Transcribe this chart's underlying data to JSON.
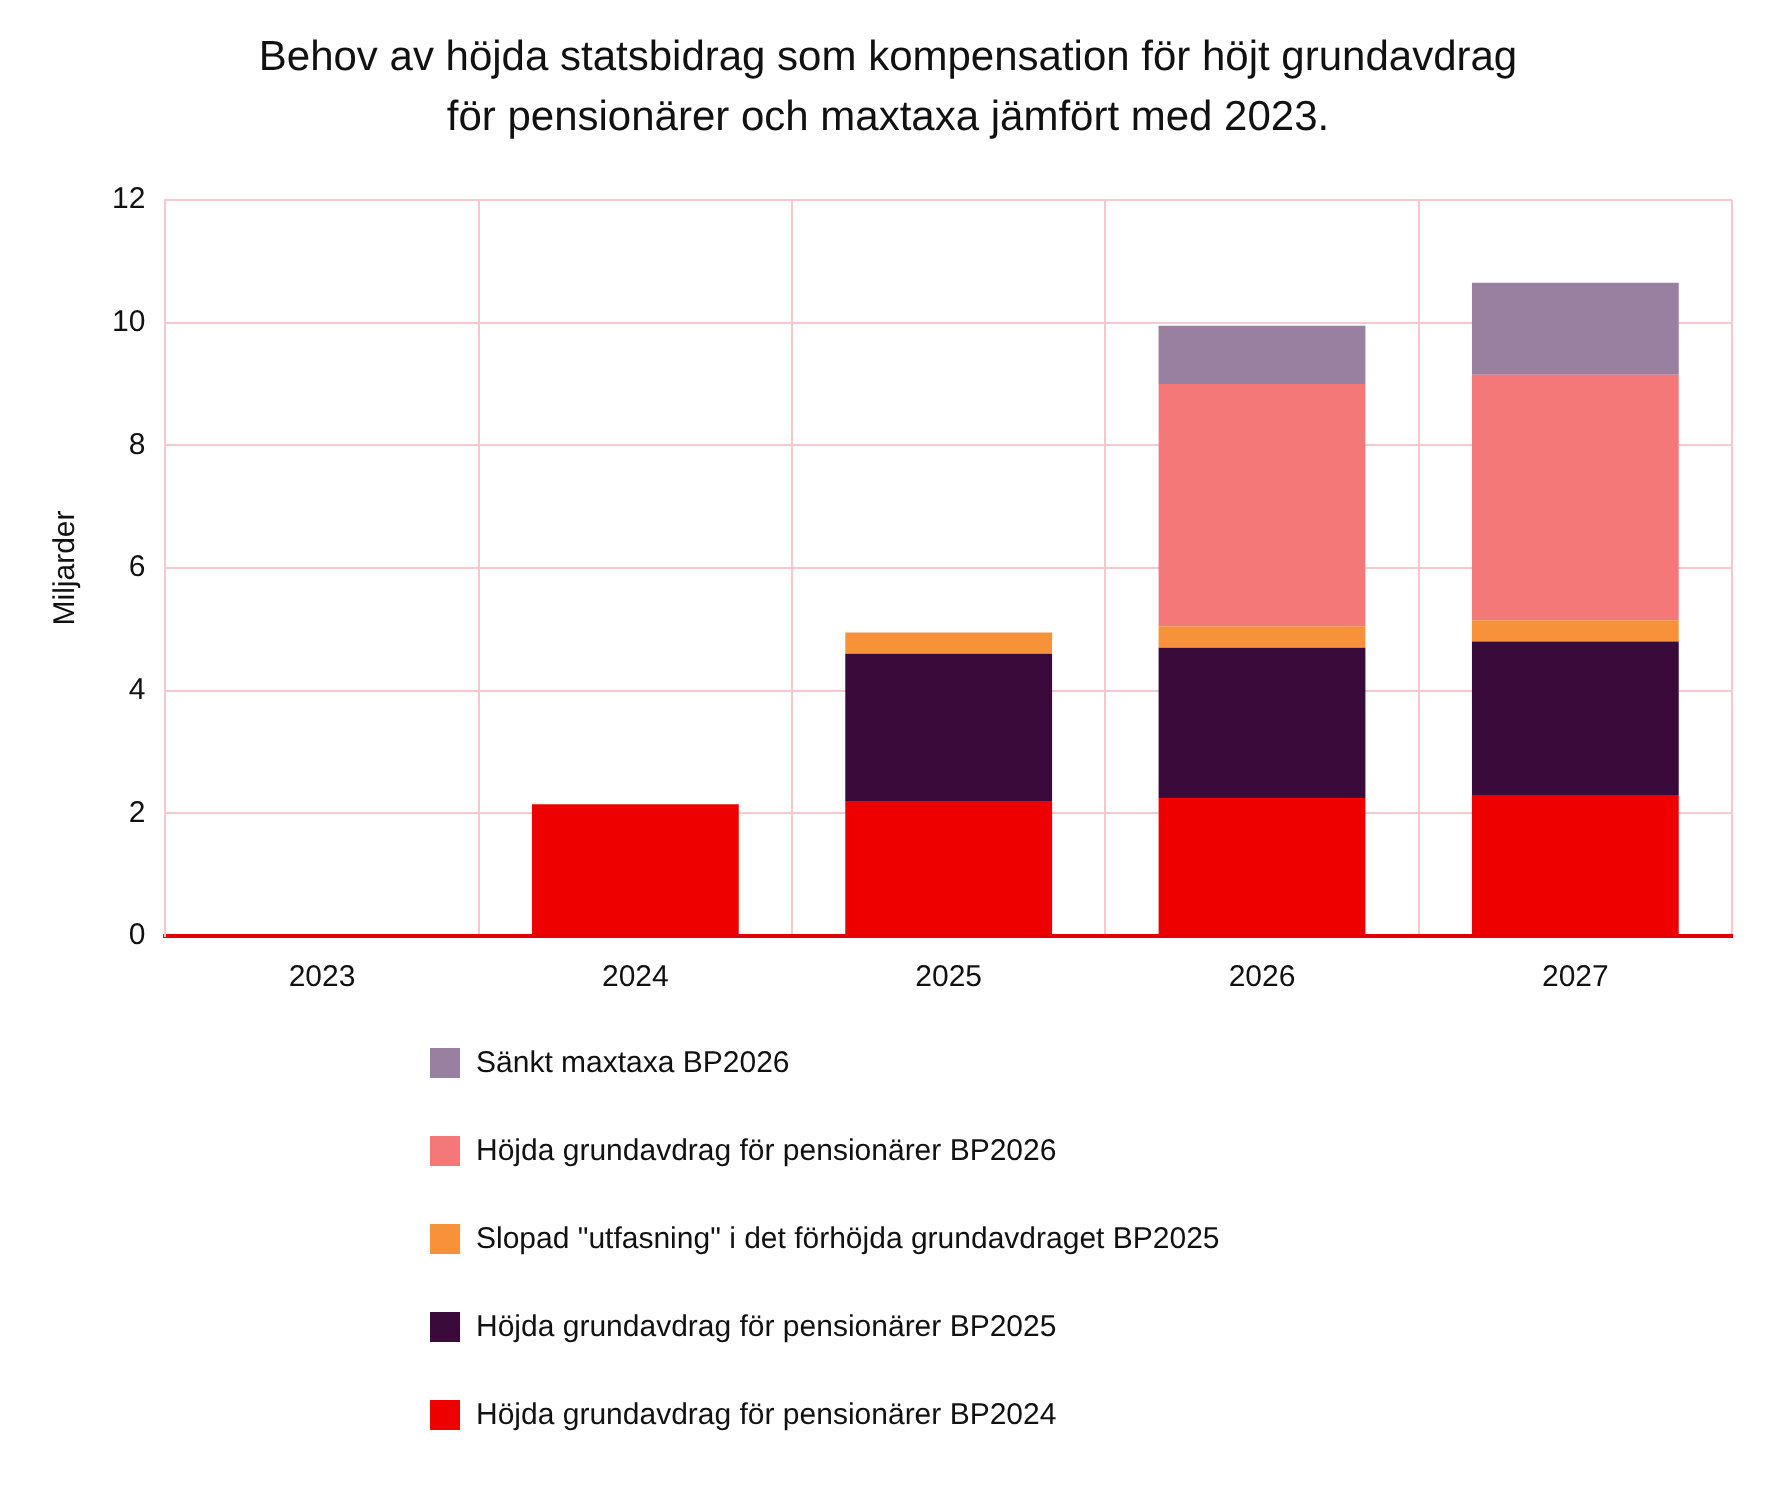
{
  "chart_data": {
    "type": "bar",
    "title": "Behov av höjda statsbidrag som kompensation för höjt grundavdrag för pensionärer och maxtaxa jämfört med 2023.",
    "ylabel": "Miljarder",
    "categories": [
      "2023",
      "2024",
      "2025",
      "2026",
      "2027"
    ],
    "stacked": true,
    "ylim": [
      0,
      12
    ],
    "yticks": [
      0,
      2,
      4,
      6,
      8,
      10,
      12
    ],
    "grid": true,
    "legend": "bottom",
    "series": [
      {
        "name": "Höjda grundavdrag för pensionärer BP2024",
        "color": "#ee0000",
        "values": [
          0,
          2.15,
          2.2,
          2.25,
          2.3
        ]
      },
      {
        "name": "Höjda grundavdrag för pensionärer BP2025",
        "color": "#3a0b3a",
        "values": [
          0,
          0,
          2.4,
          2.45,
          2.5
        ]
      },
      {
        "name": "Slopad \"utfasning\" i det förhöjda grundavdraget BP2025",
        "color": "#f7923a",
        "values": [
          0,
          0,
          0.35,
          0.35,
          0.35
        ]
      },
      {
        "name": "Höjda grundavdrag för pensionärer BP2026",
        "color": "#f47878",
        "values": [
          0,
          0,
          0,
          3.95,
          4.0
        ]
      },
      {
        "name": "Sänkt maxtaxa BP2026",
        "color": "#9a80a0",
        "values": [
          0,
          0,
          0,
          0.95,
          1.5
        ]
      }
    ]
  }
}
